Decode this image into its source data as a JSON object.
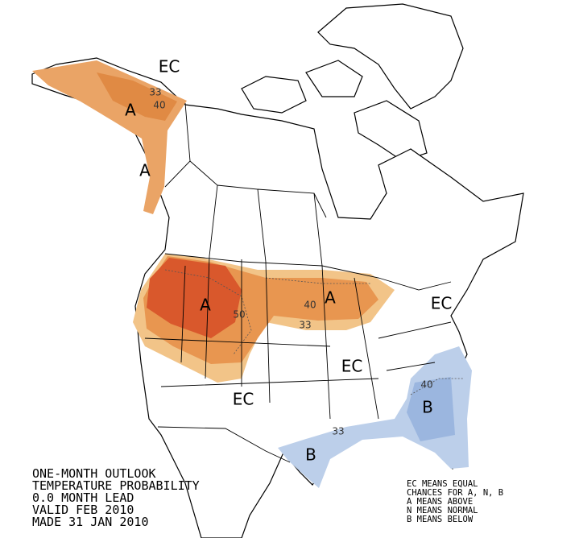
{
  "title_block": {
    "lines": [
      "ONE-MONTH OUTLOOK",
      "TEMPERATURE PROBABILITY",
      "0.0 MONTH LEAD",
      "VALID FEB 2010",
      "MADE 31 JAN 2010"
    ]
  },
  "key": {
    "lines": [
      "EC MEANS EQUAL",
      "CHANCES FOR A, N, B",
      "A MEANS ABOVE",
      "N MEANS NORMAL",
      "B MEANS BELOW"
    ]
  },
  "region_labels": [
    "EC",
    "A",
    "A",
    "A",
    "A",
    "EC",
    "EC",
    "EC",
    "B",
    "B"
  ],
  "contour_labels": [
    "33",
    "40",
    "50",
    "40",
    "33",
    "40",
    "33"
  ]
}
